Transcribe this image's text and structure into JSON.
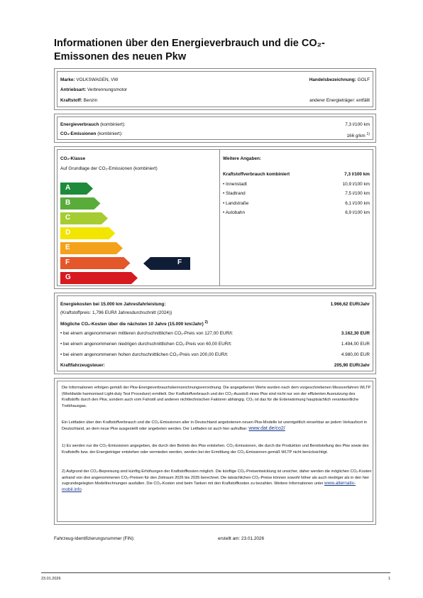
{
  "title": "Informationen über den Energieverbrauch und die CO₂-Emissonen des neuen Pkw",
  "vehicle": {
    "brand_label": "Marke:",
    "brand_value": "VOLKSWAGEN, VW",
    "trade_label": "Handelsbezeichnung:",
    "trade_value": "GOLF",
    "drive_label": "Antriebsart:",
    "drive_value": "Verbrennungsmotor",
    "fuel_label": "Kraftstoff:",
    "fuel_value": "Benzin",
    "other_label": "anderer Energieträger:",
    "other_value": "entfällt"
  },
  "consumption": {
    "energy_label": "Energieverbrauch",
    "energy_suffix": "(kombiniert):",
    "energy_value": "7,3 l/100 km",
    "co2_label": "CO₂-Emissionen",
    "co2_suffix": "(kombiniert):",
    "co2_value": "166 g/km",
    "co2_note": "1)"
  },
  "co2_class": {
    "heading": "CO₂-Klasse",
    "basis": "Auf Grundlage der CO₂-Emissionen (kombiniert)",
    "classes": [
      "A",
      "B",
      "C",
      "D",
      "E",
      "F",
      "G"
    ],
    "colors": [
      "#1e8b3a",
      "#5aac3a",
      "#a6cc33",
      "#f2e500",
      "#f4a11b",
      "#e4572b",
      "#d71920"
    ],
    "current": "F"
  },
  "further": {
    "heading": "Weitere Angaben:",
    "combined_label": "Kraftstoffverbrauch kombiniert",
    "combined_value": "7,3 l/100 km",
    "rows": [
      {
        "label": "• Innenstadt",
        "value": "10,9 l/100 km"
      },
      {
        "label": "• Stadtrand",
        "value": "7,5 l/100 km"
      },
      {
        "label": "• Landstraße",
        "value": "6,1 l/100 km"
      },
      {
        "label": "• Autobahn",
        "value": "6,9 l/100 km"
      }
    ]
  },
  "costs": {
    "energy_label": "Energiekosten bei 15.000 km Jahresfahrleistung:",
    "energy_value": "1.966,62 EUR/Jahr",
    "fuel_price": "(Kraftstoffpreis: 1,796 EUR/l Jahresdurchschnitt (2024))",
    "co2_costs_label": "Mögliche CO₂-Kosten über die nächsten 10 Jahre (15.000 km/Jahr)",
    "co2_costs_note": "2)",
    "mid_label": "• bei einem angenommenen mittleren durchschnittlichen CO₂-Preis von 127,00 EUR/t:",
    "mid_value": "3.162,30 EUR",
    "low_label": "• bei einem angenommenen niedrigen durchschnittlichen CO₂-Preis von 60,00 EUR/t:",
    "low_value": "1.494,00 EUR",
    "high_label": "• bei einem angenommenen hohen durchschnittlichen CO₂-Preis von 200,00 EUR/t:",
    "high_value": "4.980,00 EUR",
    "tax_label": "Kraftfahrzeugsteuer:",
    "tax_value": "205,90 EUR/Jahr"
  },
  "notes": {
    "p1": "Die Informationen erfolgen gemäß der Pkw-Energieverbrauchskennzeichnungsverordnung. Die angegebenen Werte wurden nach dem vorgeschriebenen Messverfahren WLTP (Worldwide harmonised Light-duty Test Procedure) ermittelt. Der Kraftstoffverbrauch und der CO₂-Ausstoß eines Pkw sind nicht nur von der effizienten Ausnutzung des Kraftstoffs durch den Pkw, sondern auch vom Fahrstil und anderen nichttechnischen Faktoren abhängig. CO₂ ist das für die Erderwärmung hauptsächlich verantwortliche Treibhausgas.",
    "p2": "Ein Leitfaden über den Kraftstoffverbrauch und die CO₂-Emissionen aller in Deutschland angebotenen neuen Pkw-Modelle ist unentgeltlich einsehbar an jedem Verkaufsort in Deutschland, an dem neue Pkw ausgestellt oder angeboten werden. Der Leitfaden ist auch hier aufrufbar:",
    "link1": "www.dat.de/co2/",
    "p3": "1) Es werden nur die CO₂-Emissionen angegeben, die durch den Betrieb des Pkw entstehen. CO₂-Emissionen, die durch die Produktion und Bereitstellung des Pkw sowie des Kraftstoffs bzw. der Energieträger entstehen oder vermieden werden, werden bei der Ermittlung der CO₂-Emissionen gemäß WLTP nicht berücksichtigt.",
    "p4": "2) Aufgrund der CO₂-Bepreisung sind künftig Erhöhungen der Kraftstoffkosten möglich. Die künftige CO₂-Preisentwicklung ist unsicher, daher werden die möglichen CO₂-Kosten anhand von drei angenommenen CO₂-Preisen für den Zeitraum 2026 bis 2035 berechnet. Die tatsächlichen CO₂-Preise können sowohl höher als auch niedriger als in den hier zugrundegelegten Modellrechnungen ausfallen. Die CO₂-Kosten sind beim Tanken mit den Kraftstoffkosten zu bezahlen. Weitere Informationen unter",
    "link2": "www.alternativ-mobil.info"
  },
  "fin_label": "Fahrzeug-Identifizierungsnummer (FIN):",
  "created_label": "erstellt am:",
  "created_value": "23.01.2026",
  "footer_date": "23.01.2026",
  "page_number": "1"
}
